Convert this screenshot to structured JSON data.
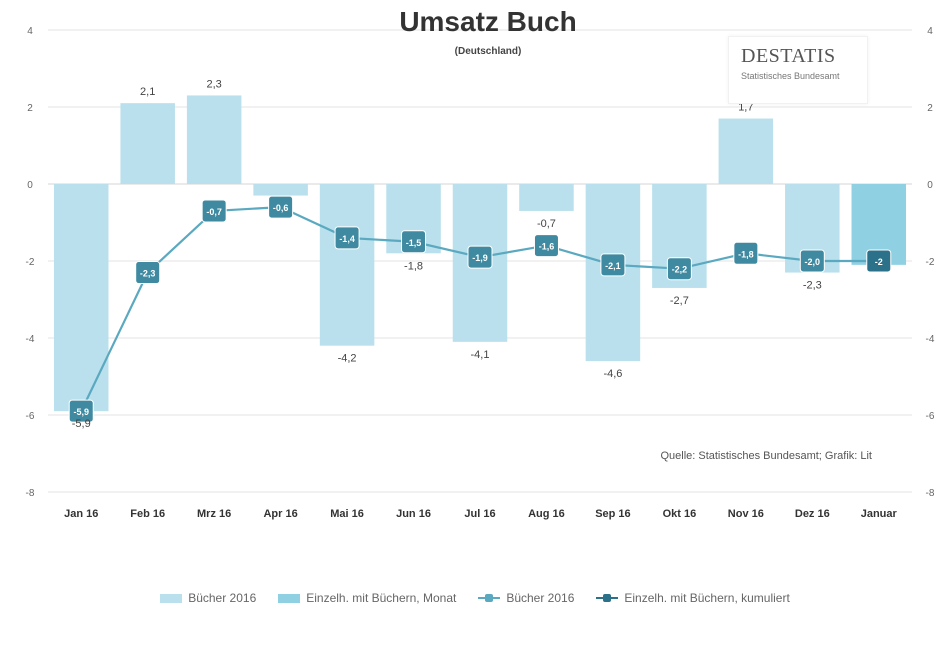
{
  "colors": {
    "bar_fill": "#b9e0ec",
    "bar_fill_highlight": "#8fd0e3",
    "line": "#5aa9c0",
    "marker": "#3f8aa1",
    "marker_cumulative": "#2b7189",
    "grid": "#e3e3e3",
    "text": "#333333"
  },
  "logo": {
    "text": "DESTATIS",
    "subtitle": "Statistisches Bundesamt"
  },
  "legend": {
    "items": [
      {
        "label": "Bücher 2016",
        "type": "bar",
        "color_key": "bar_fill"
      },
      {
        "label": "Einzelh. mit Büchern, Monat",
        "type": "bar",
        "color_key": "bar_fill_highlight"
      },
      {
        "label": "Bücher 2016",
        "type": "line",
        "color_key": "line"
      },
      {
        "label": "Einzelh. mit Büchern, kumuliert",
        "type": "line",
        "color_key": "marker_cumulative"
      }
    ]
  },
  "chart_data": {
    "type": "bar",
    "title": "Umsatz Buch",
    "subtitle": "(Deutschland)",
    "source_note": "Quelle: Statistisches Bundesamt; Grafik: Lit",
    "categories": [
      "Jan 16",
      "Feb 16",
      "Mrz 16",
      "Apr 16",
      "Mai 16",
      "Jun 16",
      "Jul 16",
      "Aug 16",
      "Sep 16",
      "Okt 16",
      "Nov 16",
      "Dez 16",
      "Januar"
    ],
    "ylim": [
      -8,
      4
    ],
    "yticks": [
      4,
      2,
      0,
      -2,
      -4,
      -6,
      -8
    ],
    "ytick_labels_left": [
      "4",
      "2",
      "0",
      "-2",
      "-4",
      "-6",
      "-8"
    ],
    "ytick_labels_right": [
      "4",
      "2",
      "0",
      "-2",
      "-4",
      "-6",
      "-8"
    ],
    "grid": true,
    "legend_position": "bottom",
    "series": [
      {
        "name": "Bücher 2016",
        "type": "bar",
        "values": [
          -5.9,
          2.1,
          2.3,
          -0.3,
          -4.2,
          -1.8,
          -4.1,
          -0.7,
          -4.6,
          -2.7,
          1.7,
          -2.3,
          -2.1
        ],
        "labels": [
          "-5,9",
          "2,1",
          "2,3",
          "",
          "-4,2",
          "-1,8",
          "-4,1",
          "-0,7",
          "-4,6",
          "-2,7",
          "1,7",
          "-2,3",
          ""
        ]
      },
      {
        "name": "Einzelh. mit Büchern, kumuliert",
        "type": "line",
        "values": [
          -5.9,
          -2.3,
          -0.7,
          -0.6,
          -1.4,
          -1.5,
          -1.9,
          -1.6,
          -2.1,
          -2.2,
          -1.8,
          -2.0,
          -2.0
        ],
        "labels": [
          "-5,9",
          "-2,3",
          "-0,7",
          "-0,6",
          "-1,4",
          "-1,5",
          "-1,9",
          "-1,6",
          "-2,1",
          "-2,2",
          "-1,8",
          "-2,0",
          "-2"
        ]
      }
    ]
  }
}
